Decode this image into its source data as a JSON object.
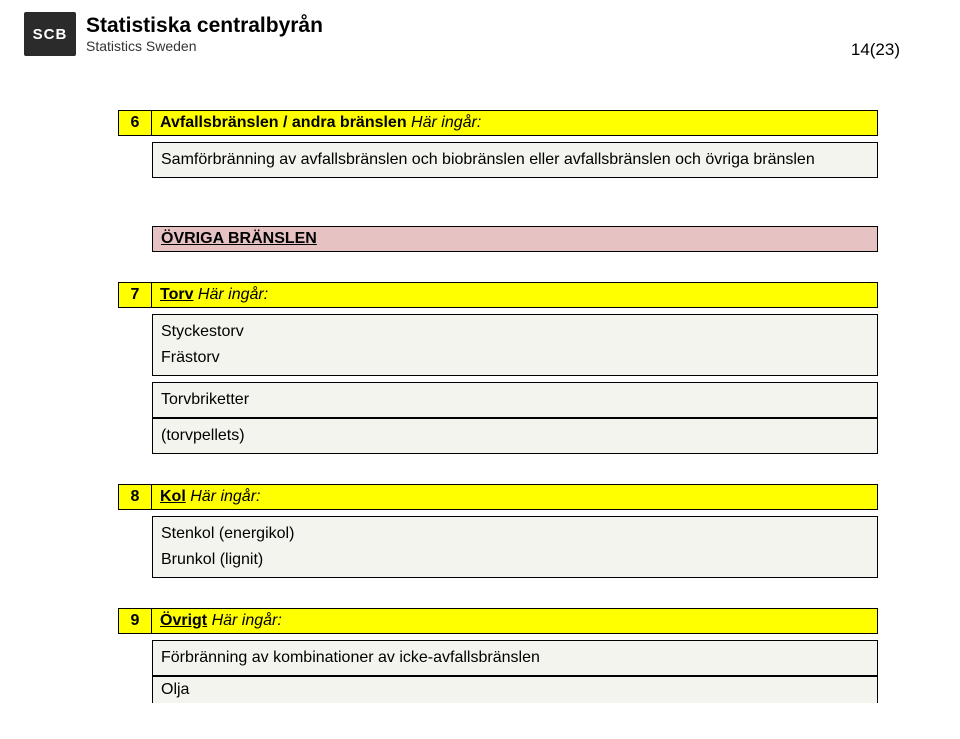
{
  "header": {
    "logo_text": "SCB",
    "org_main": "Statistiska centralbyrån",
    "org_sub": "Statistics Sweden",
    "page_number": "14(23)"
  },
  "colors": {
    "yellow": "#ffff00",
    "body_bg": "#f3f4ee",
    "section_bg": "#e6c2c2",
    "border": "#000000",
    "page_bg": "#ffffff",
    "logo_bg": "#2b2b2b",
    "logo_fg": "#ffffff"
  },
  "section6": {
    "num": "6",
    "title_bold": "Avfallsbränslen / andra bränslen",
    "title_italic": " Här ingår:",
    "body": "Samförbränning av avfallsbränslen och biobränslen eller avfallsbränslen och övriga bränslen"
  },
  "section_heading": "ÖVRIGA BRÄNSLEN",
  "section7": {
    "num": "7",
    "title_underline": "Torv",
    "title_italic": " Här ingår:",
    "line1": "Styckestorv",
    "line2": "Frästorv",
    "line3": "Torvbriketter",
    "line4": "(torvpellets)"
  },
  "section8": {
    "num": "8",
    "title_underline": "Kol",
    "title_italic": " Här ingår:",
    "line1": "Stenkol (energikol)",
    "line2": "Brunkol (lignit)"
  },
  "section9": {
    "num": "9",
    "title_underline": "Övrigt",
    "title_italic": " Här ingår:",
    "line1": "Förbränning av kombinationer av icke-avfallsbränslen",
    "line2": "Olja"
  }
}
